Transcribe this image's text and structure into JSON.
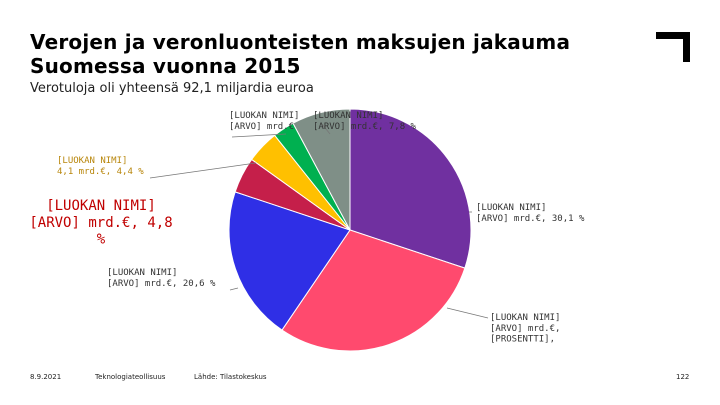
{
  "slide": {
    "title_line1": "Verojen ja veronluonteisten maksujen jakauma",
    "title_line2": "Suomessa vuonna 2015",
    "subtitle": "Verotuloja oli yhteensä 92,1 miljardia euroa"
  },
  "footer": {
    "date": "8.9.2021",
    "org": "Teknologiateollisuus",
    "source": "Lähde: Tilastokeskus",
    "page": "122"
  },
  "chart_data": {
    "type": "pie",
    "title": "",
    "start_angle_deg": 0,
    "direction": "clockwise",
    "slices": [
      {
        "value": 30.1,
        "color": "#7030a0",
        "label_lines": [
          "[LUOKAN NIMI]",
          "[ARVO] mrd.€, 30,1 %"
        ],
        "label_color": "#333333",
        "label_size": 9
      },
      {
        "value": 29.4,
        "color": "#ff4a6e",
        "label_lines": [
          "[LUOKAN NIMI]",
          "[ARVO] mrd.€,",
          "[PROSENTTI],"
        ],
        "label_color": "#333333",
        "label_size": 9
      },
      {
        "value": 20.6,
        "color": "#2f2fe6",
        "label_lines": [
          "[LUOKAN NIMI]",
          "[ARVO] mrd.€, 20,6 %"
        ],
        "label_color": "#333333",
        "label_size": 9
      },
      {
        "value": 4.8,
        "color": "#c51f4a",
        "label_lines": [
          "[LUOKAN NIMI]",
          "[ARVO] mrd.€, 4,8",
          "%"
        ],
        "label_color": "#c00000",
        "label_size": 14
      },
      {
        "value": 4.4,
        "color": "#ffc000",
        "label_lines": [
          "[LUOKAN NIMI]",
          "4,1 mrd.€, 4,4 %"
        ],
        "label_color": "#b8860b",
        "label_size": 9
      },
      {
        "value": 2.9,
        "color": "#00b050",
        "label_lines": [
          "[LUOKAN NIMI]",
          "[ARVO] mrd.€"
        ],
        "label_color": "#333333",
        "label_size": 9
      },
      {
        "value": 7.8,
        "color": "#7f8f87",
        "label_lines": [
          "[LUOKAN NIMI]",
          "[ARVO] mrd.€, 7,8 %"
        ],
        "label_color": "#333333",
        "label_size": 9
      }
    ]
  }
}
